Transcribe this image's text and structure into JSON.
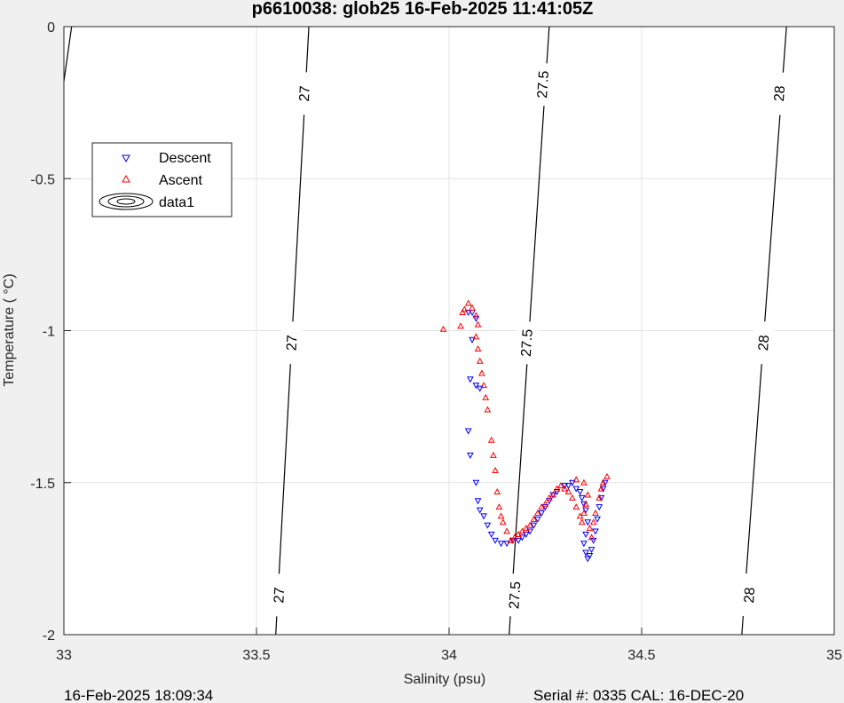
{
  "title": "p6610038: glob25 16-Feb-2025 11:41:05Z",
  "footer_left": "16-Feb-2025 18:09:34",
  "footer_right": "Serial #: 0335  CAL: 16-DEC-20",
  "chart_data": {
    "type": "scatter",
    "xlabel": "Salinity (psu)",
    "ylabel": "Temperature (   °C)",
    "xlim": [
      33,
      35
    ],
    "ylim": [
      -2,
      0
    ],
    "xticks": [
      33,
      33.5,
      34,
      34.5,
      35
    ],
    "xtick_labels": [
      "33",
      "33.5",
      "34",
      "34.5",
      "35"
    ],
    "yticks": [
      0,
      -0.5,
      -1,
      -1.5,
      -2
    ],
    "ytick_labels": [
      "0",
      "-0.5",
      "-1",
      "-1.5",
      "-2"
    ],
    "grid": true,
    "legend_position": "upper-left",
    "legend": [
      "Descent",
      "Ascent",
      "data1"
    ],
    "colors": {
      "descent": "#0000ff",
      "ascent": "#ff0000",
      "contour": "#000000"
    },
    "contours": [
      {
        "level": "27",
        "points": [
          [
            33.02,
            0
          ],
          [
            33.0,
            -0.18
          ]
        ],
        "labels": []
      },
      {
        "level": "27",
        "points": [
          [
            33.636,
            0
          ],
          [
            33.55,
            -2
          ]
        ],
        "labels": [
          [
            33.623,
            -0.22
          ],
          [
            33.59,
            -1.04
          ],
          [
            33.557,
            -1.87
          ]
        ]
      },
      {
        "level": "27.5",
        "points": [
          [
            34.26,
            0
          ],
          [
            34.156,
            -2
          ]
        ],
        "labels": [
          [
            34.242,
            -0.19
          ],
          [
            34.2,
            -1.04
          ],
          [
            34.169,
            -1.87
          ]
        ]
      },
      {
        "level": "28",
        "points": [
          [
            34.876,
            0
          ],
          [
            34.76,
            -2
          ]
        ],
        "labels": [
          [
            34.856,
            -0.22
          ],
          [
            34.815,
            -1.04
          ],
          [
            34.778,
            -1.87
          ]
        ]
      }
    ],
    "series": [
      {
        "name": "Descent",
        "marker": "triangle-down",
        "points": [
          [
            34.05,
            -0.94
          ],
          [
            34.06,
            -0.94
          ],
          [
            34.07,
            -0.96
          ],
          [
            34.06,
            -1.03
          ],
          [
            34.055,
            -1.16
          ],
          [
            34.07,
            -1.18
          ],
          [
            34.08,
            -1.19
          ],
          [
            34.05,
            -1.33
          ],
          [
            34.055,
            -1.41
          ],
          [
            34.07,
            -1.5
          ],
          [
            34.075,
            -1.56
          ],
          [
            34.08,
            -1.59
          ],
          [
            34.09,
            -1.61
          ],
          [
            34.1,
            -1.64
          ],
          [
            34.11,
            -1.67
          ],
          [
            34.12,
            -1.69
          ],
          [
            34.135,
            -1.7
          ],
          [
            34.15,
            -1.7
          ],
          [
            34.165,
            -1.69
          ],
          [
            34.18,
            -1.69
          ],
          [
            34.19,
            -1.68
          ],
          [
            34.2,
            -1.67
          ],
          [
            34.21,
            -1.66
          ],
          [
            34.22,
            -1.64
          ],
          [
            34.23,
            -1.62
          ],
          [
            34.24,
            -1.6
          ],
          [
            34.25,
            -1.58
          ],
          [
            34.26,
            -1.56
          ],
          [
            34.27,
            -1.54
          ],
          [
            34.28,
            -1.53
          ],
          [
            34.3,
            -1.51
          ],
          [
            34.31,
            -1.51
          ],
          [
            34.32,
            -1.5
          ],
          [
            34.33,
            -1.52
          ],
          [
            34.34,
            -1.53
          ],
          [
            34.345,
            -1.55
          ],
          [
            34.35,
            -1.57
          ],
          [
            34.355,
            -1.59
          ],
          [
            34.36,
            -1.63
          ],
          [
            34.355,
            -1.67
          ],
          [
            34.35,
            -1.7
          ],
          [
            34.355,
            -1.73
          ],
          [
            34.36,
            -1.75
          ],
          [
            34.365,
            -1.74
          ],
          [
            34.37,
            -1.72
          ],
          [
            34.375,
            -1.69
          ],
          [
            34.38,
            -1.66
          ],
          [
            34.385,
            -1.62
          ],
          [
            34.39,
            -1.58
          ],
          [
            34.395,
            -1.55
          ],
          [
            34.4,
            -1.52
          ],
          [
            34.405,
            -1.5
          ]
        ]
      },
      {
        "name": "Ascent",
        "marker": "triangle-up",
        "points": [
          [
            33.985,
            -0.995
          ],
          [
            34.03,
            -0.985
          ],
          [
            34.035,
            -0.94
          ],
          [
            34.04,
            -0.93
          ],
          [
            34.05,
            -0.91
          ],
          [
            34.06,
            -0.925
          ],
          [
            34.07,
            -0.95
          ],
          [
            34.075,
            -0.98
          ],
          [
            34.07,
            -1.02
          ],
          [
            34.075,
            -1.06
          ],
          [
            34.08,
            -1.1
          ],
          [
            34.085,
            -1.14
          ],
          [
            34.09,
            -1.18
          ],
          [
            34.095,
            -1.22
          ],
          [
            34.1,
            -1.26
          ],
          [
            34.11,
            -1.36
          ],
          [
            34.115,
            -1.41
          ],
          [
            34.12,
            -1.46
          ],
          [
            34.125,
            -1.53
          ],
          [
            34.13,
            -1.58
          ],
          [
            34.135,
            -1.61
          ],
          [
            34.14,
            -1.63
          ],
          [
            34.15,
            -1.66
          ],
          [
            34.16,
            -1.69
          ],
          [
            34.17,
            -1.68
          ],
          [
            34.18,
            -1.67
          ],
          [
            34.19,
            -1.66
          ],
          [
            34.2,
            -1.65
          ],
          [
            34.21,
            -1.64
          ],
          [
            34.22,
            -1.62
          ],
          [
            34.23,
            -1.6
          ],
          [
            34.24,
            -1.58
          ],
          [
            34.25,
            -1.57
          ],
          [
            34.26,
            -1.55
          ],
          [
            34.27,
            -1.54
          ],
          [
            34.28,
            -1.52
          ],
          [
            34.29,
            -1.51
          ],
          [
            34.3,
            -1.52
          ],
          [
            34.31,
            -1.53
          ],
          [
            34.32,
            -1.55
          ],
          [
            34.33,
            -1.58
          ],
          [
            34.34,
            -1.61
          ],
          [
            34.345,
            -1.63
          ],
          [
            34.35,
            -1.6
          ],
          [
            34.355,
            -1.57
          ],
          [
            34.36,
            -1.54
          ],
          [
            34.365,
            -1.65
          ],
          [
            34.37,
            -1.68
          ],
          [
            34.375,
            -1.63
          ],
          [
            34.38,
            -1.6
          ],
          [
            34.39,
            -1.55
          ],
          [
            34.395,
            -1.52
          ],
          [
            34.4,
            -1.5
          ],
          [
            34.41,
            -1.48
          ],
          [
            34.33,
            -1.49
          ],
          [
            34.35,
            -1.5
          ]
        ]
      }
    ]
  }
}
